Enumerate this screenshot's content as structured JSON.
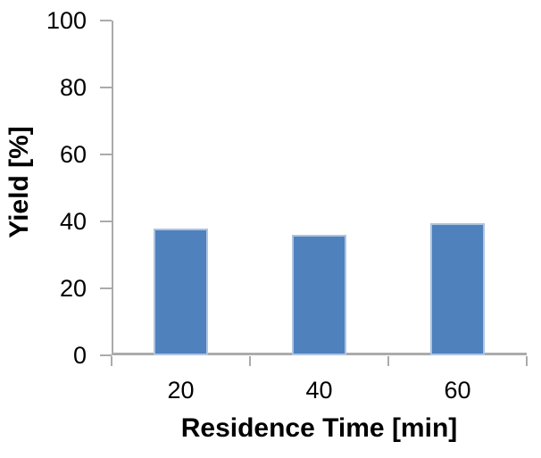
{
  "chart_data": {
    "type": "bar",
    "title": "",
    "categories": [
      "20",
      "40",
      "60"
    ],
    "values": [
      38,
      36,
      39.5
    ],
    "series": [
      {
        "name": "Yield",
        "values": [
          38,
          36,
          39.5
        ]
      }
    ],
    "xlabel": "Residence Time [min]",
    "ylabel": "Yield [%]",
    "ylim": [
      0,
      100
    ],
    "yticks": [
      0,
      20,
      40,
      60,
      80,
      100
    ],
    "grid": false,
    "legend_position": "none",
    "colors": {
      "bar_fill": "#4F81BD",
      "bar_border": "#AEC4E0",
      "axis_line": "#ABABAB",
      "tick_mark": "#ABABAB",
      "text": "#000000",
      "background": "#FFFFFF"
    }
  }
}
